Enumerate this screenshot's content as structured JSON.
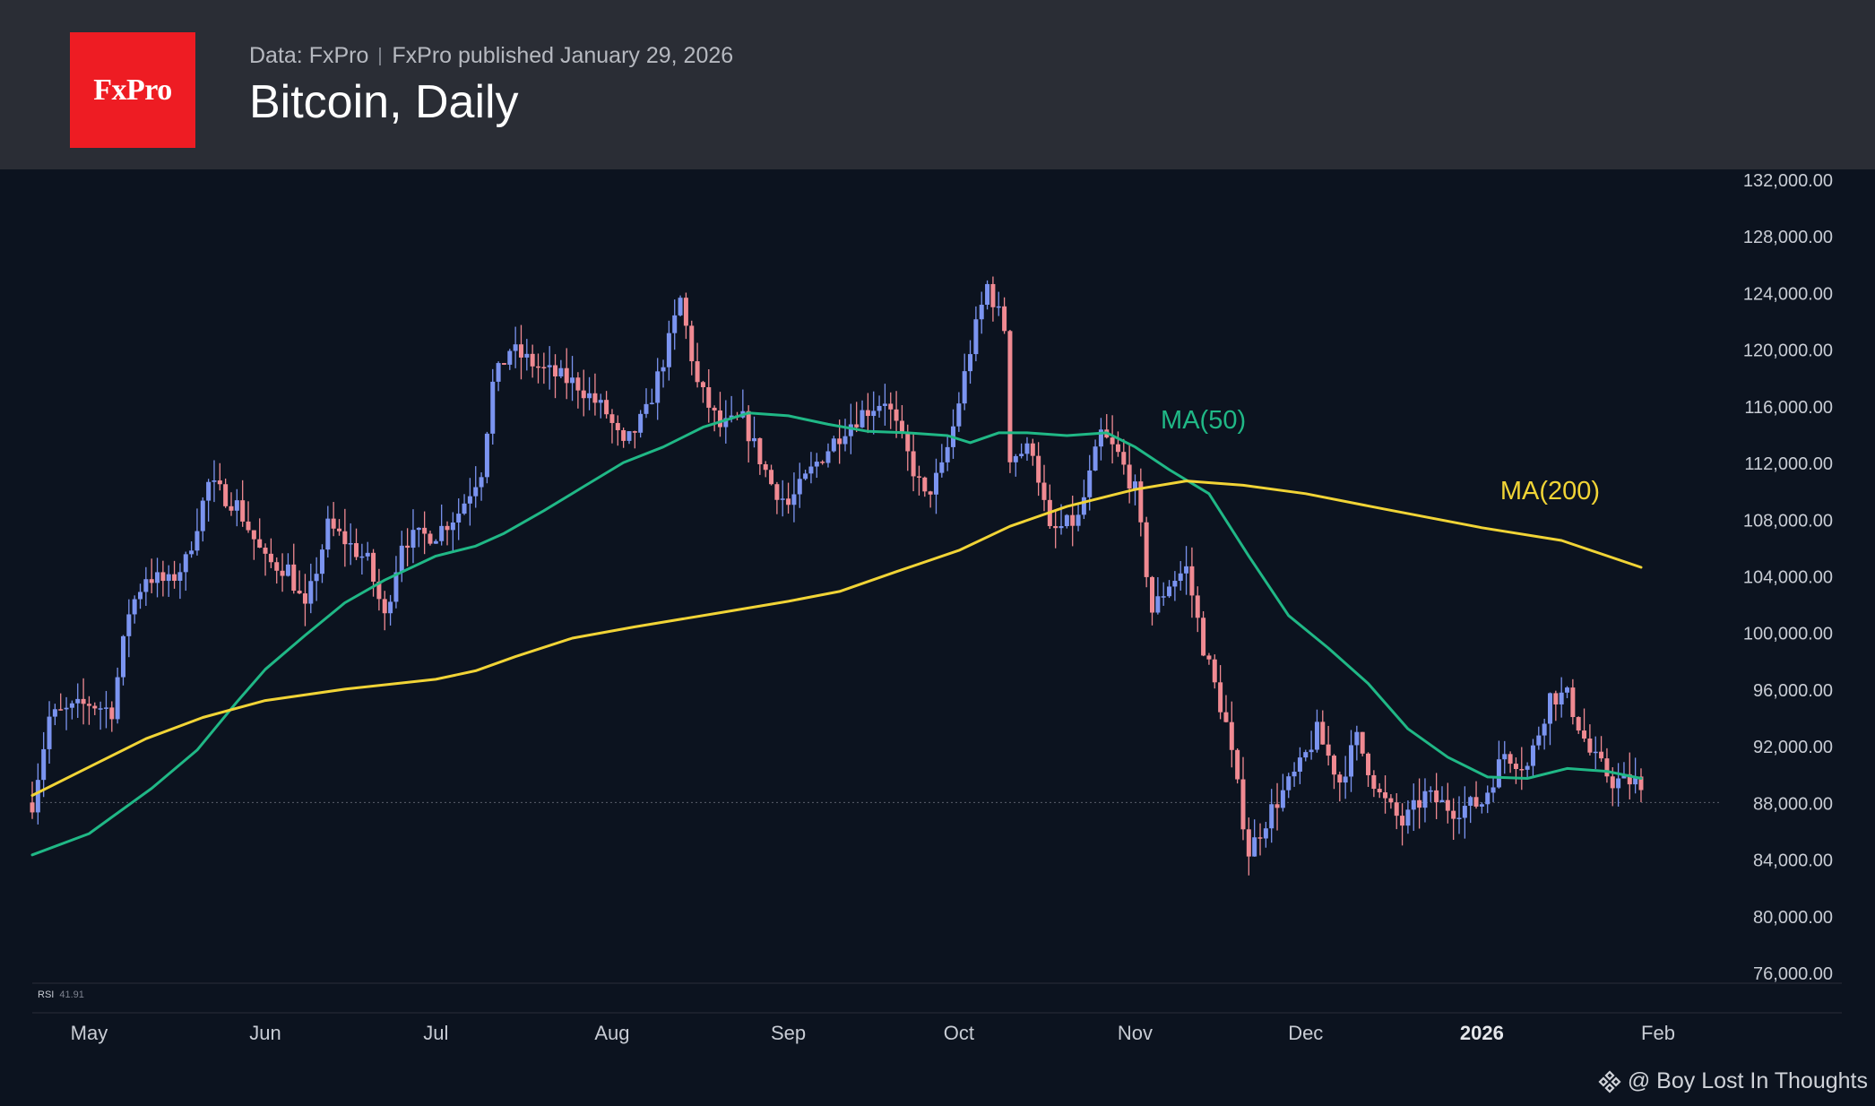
{
  "header": {
    "logo_text": "FxPro",
    "source": "Data: FxPro",
    "published": "FxPro published January 29, 2026",
    "title": "Bitcoin, Daily"
  },
  "credit": {
    "icon": "diamond-logo-icon",
    "text": "@ Boy Lost In Thoughts"
  },
  "rsi": {
    "label": "RSI",
    "value": "41.91"
  },
  "colors": {
    "up": "#7b94f0",
    "down": "#f08a92",
    "ma50": "#20b886",
    "ma200": "#f1d436",
    "logo_red": "#ee1c23",
    "background": "#0c131f",
    "header_bg": "#2a2d35"
  },
  "chart_data": {
    "type": "candlestick",
    "title": "Bitcoin, Daily",
    "y_axis_labels": [
      "132,000.00",
      "128,000.00",
      "124,000.00",
      "120,000.00",
      "116,000.00",
      "112,000.00",
      "108,000.00",
      "104,000.00",
      "100,000.00",
      "96,000.00",
      "92,000.00",
      "88,000.00",
      "84,000.00",
      "80,000.00",
      "76,000.00"
    ],
    "x_axis_labels": [
      "May",
      "Jun",
      "Jul",
      "Aug",
      "Sep",
      "Oct",
      "Nov",
      "Dec",
      "2026",
      "Feb"
    ],
    "ylim": [
      76000,
      132000
    ],
    "x_range": [
      "2025-04-21",
      "2026-02-01"
    ],
    "last_price": 88000,
    "annotations": [
      {
        "text": "MA(50)",
        "series": "ma50",
        "at": [
          "2025-11-13",
          114400
        ]
      },
      {
        "text": "MA(200)",
        "series": "ma200",
        "at": [
          "2026-01-13",
          109400
        ]
      }
    ],
    "anchors": [
      [
        "2025-04-21",
        88000
      ],
      [
        "2025-04-24",
        94000
      ],
      [
        "2025-05-01",
        95000
      ],
      [
        "2025-05-05",
        94500
      ],
      [
        "2025-05-08",
        101500
      ],
      [
        "2025-05-11",
        104000
      ],
      [
        "2025-05-15",
        103500
      ],
      [
        "2025-05-18",
        105000
      ],
      [
        "2025-05-22",
        110500
      ],
      [
        "2025-05-27",
        109000
      ],
      [
        "2025-06-01",
        105000
      ],
      [
        "2025-06-05",
        104500
      ],
      [
        "2025-06-08",
        101500
      ],
      [
        "2025-06-12",
        107500
      ],
      [
        "2025-06-15",
        106500
      ],
      [
        "2025-06-19",
        105000
      ],
      [
        "2025-06-22",
        101000
      ],
      [
        "2025-06-25",
        106500
      ],
      [
        "2025-07-01",
        107000
      ],
      [
        "2025-07-05",
        108500
      ],
      [
        "2025-07-09",
        111500
      ],
      [
        "2025-07-11",
        117500
      ],
      [
        "2025-07-14",
        120000
      ],
      [
        "2025-07-20",
        118500
      ],
      [
        "2025-07-26",
        117500
      ],
      [
        "2025-07-31",
        115500
      ],
      [
        "2025-08-03",
        113000
      ],
      [
        "2025-08-07",
        115500
      ],
      [
        "2025-08-11",
        120500
      ],
      [
        "2025-08-13",
        123500
      ],
      [
        "2025-08-16",
        117500
      ],
      [
        "2025-08-20",
        114500
      ],
      [
        "2025-08-24",
        115000
      ],
      [
        "2025-08-29",
        110500
      ],
      [
        "2025-09-01",
        109000
      ],
      [
        "2025-09-06",
        112000
      ],
      [
        "2025-09-11",
        114500
      ],
      [
        "2025-09-14",
        115500
      ],
      [
        "2025-09-18",
        116500
      ],
      [
        "2025-09-22",
        112500
      ],
      [
        "2025-09-25",
        109500
      ],
      [
        "2025-09-28",
        111500
      ],
      [
        "2025-09-30",
        114500
      ],
      [
        "2025-10-03",
        120000
      ],
      [
        "2025-10-06",
        124500
      ],
      [
        "2025-10-09",
        121500
      ],
      [
        "2025-10-10",
        112500
      ],
      [
        "2025-10-14",
        113000
      ],
      [
        "2025-10-17",
        107000
      ],
      [
        "2025-10-22",
        108000
      ],
      [
        "2025-10-26",
        114000
      ],
      [
        "2025-10-29",
        112500
      ],
      [
        "2025-11-01",
        110000
      ],
      [
        "2025-11-04",
        101500
      ],
      [
        "2025-11-07",
        103500
      ],
      [
        "2025-11-10",
        104500
      ],
      [
        "2025-11-13",
        99000
      ],
      [
        "2025-11-17",
        93500
      ],
      [
        "2025-11-21",
        84500
      ],
      [
        "2025-11-25",
        87500
      ],
      [
        "2025-11-30",
        90500
      ],
      [
        "2025-12-03",
        93000
      ],
      [
        "2025-12-07",
        89500
      ],
      [
        "2025-12-10",
        92500
      ],
      [
        "2025-12-14",
        88500
      ],
      [
        "2025-12-18",
        86500
      ],
      [
        "2025-12-22",
        88500
      ],
      [
        "2025-12-27",
        87500
      ],
      [
        "2026-01-01",
        88000
      ],
      [
        "2026-01-05",
        91500
      ],
      [
        "2026-01-09",
        90500
      ],
      [
        "2026-01-13",
        95500
      ],
      [
        "2026-01-16",
        95500
      ],
      [
        "2026-01-20",
        91500
      ],
      [
        "2026-01-24",
        89500
      ],
      [
        "2026-01-28",
        89500
      ],
      [
        "2026-01-29",
        88500
      ]
    ],
    "series": [
      {
        "name": "MA(50)",
        "key": "ma50",
        "points": [
          [
            "2025-04-21",
            84300
          ],
          [
            "2025-05-01",
            85800
          ],
          [
            "2025-05-12",
            89000
          ],
          [
            "2025-05-20",
            91700
          ],
          [
            "2025-05-27",
            95100
          ],
          [
            "2025-06-01",
            97400
          ],
          [
            "2025-06-08",
            99800
          ],
          [
            "2025-06-15",
            102100
          ],
          [
            "2025-06-22",
            103700
          ],
          [
            "2025-07-01",
            105400
          ],
          [
            "2025-07-08",
            106100
          ],
          [
            "2025-07-13",
            107000
          ],
          [
            "2025-07-20",
            108600
          ],
          [
            "2025-07-27",
            110300
          ],
          [
            "2025-08-03",
            112000
          ],
          [
            "2025-08-10",
            113100
          ],
          [
            "2025-08-17",
            114500
          ],
          [
            "2025-08-25",
            115500
          ],
          [
            "2025-09-01",
            115300
          ],
          [
            "2025-09-08",
            114700
          ],
          [
            "2025-09-15",
            114200
          ],
          [
            "2025-09-22",
            114100
          ],
          [
            "2025-09-29",
            113900
          ],
          [
            "2025-10-03",
            113400
          ],
          [
            "2025-10-08",
            114100
          ],
          [
            "2025-10-13",
            114100
          ],
          [
            "2025-10-20",
            113900
          ],
          [
            "2025-10-27",
            114100
          ],
          [
            "2025-11-01",
            113100
          ],
          [
            "2025-11-07",
            111500
          ],
          [
            "2025-11-14",
            109800
          ],
          [
            "2025-11-21",
            105400
          ],
          [
            "2025-11-28",
            101200
          ],
          [
            "2025-12-05",
            98900
          ],
          [
            "2025-12-12",
            96400
          ],
          [
            "2025-12-19",
            93200
          ],
          [
            "2025-12-26",
            91200
          ],
          [
            "2026-01-02",
            89800
          ],
          [
            "2026-01-09",
            89700
          ],
          [
            "2026-01-16",
            90400
          ],
          [
            "2026-01-23",
            90200
          ],
          [
            "2026-01-29",
            89700
          ]
        ]
      },
      {
        "name": "MA(200)",
        "key": "ma200",
        "points": [
          [
            "2025-04-21",
            88500
          ],
          [
            "2025-05-01",
            90500
          ],
          [
            "2025-05-11",
            92500
          ],
          [
            "2025-05-21",
            94000
          ],
          [
            "2025-06-01",
            95200
          ],
          [
            "2025-06-15",
            96000
          ],
          [
            "2025-07-01",
            96700
          ],
          [
            "2025-07-08",
            97300
          ],
          [
            "2025-07-15",
            98300
          ],
          [
            "2025-07-25",
            99600
          ],
          [
            "2025-08-05",
            100400
          ],
          [
            "2025-08-20",
            101400
          ],
          [
            "2025-09-01",
            102200
          ],
          [
            "2025-09-10",
            102900
          ],
          [
            "2025-09-20",
            104300
          ],
          [
            "2025-10-01",
            105800
          ],
          [
            "2025-10-10",
            107500
          ],
          [
            "2025-10-20",
            108900
          ],
          [
            "2025-11-01",
            110100
          ],
          [
            "2025-11-10",
            110700
          ],
          [
            "2025-11-20",
            110400
          ],
          [
            "2025-12-01",
            109800
          ],
          [
            "2025-12-15",
            108700
          ],
          [
            "2026-01-01",
            107400
          ],
          [
            "2026-01-15",
            106500
          ],
          [
            "2026-01-29",
            104600
          ]
        ]
      }
    ]
  }
}
